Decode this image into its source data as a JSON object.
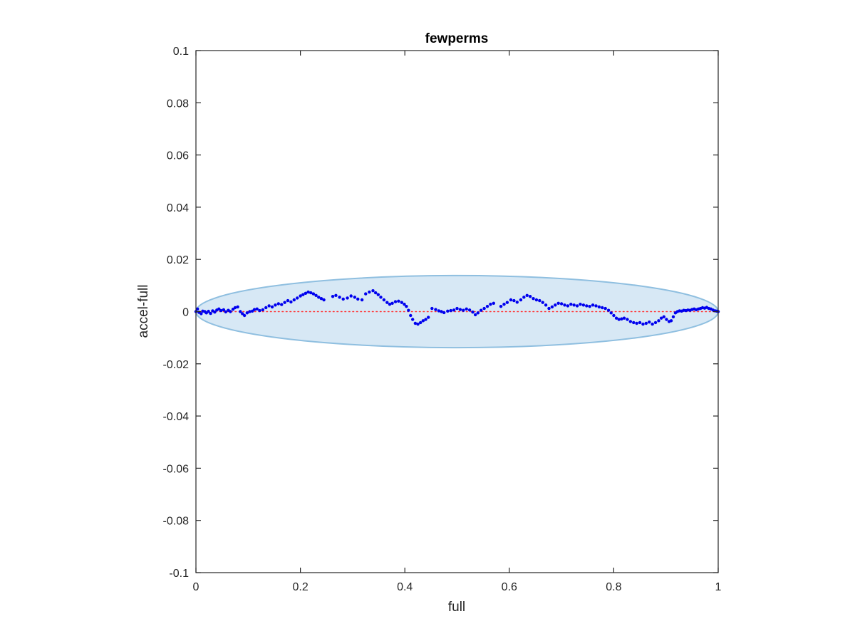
{
  "chart_data": {
    "type": "scatter",
    "title": "fewperms",
    "xlabel": "full",
    "ylabel": "accel-full",
    "xlim": [
      0,
      1
    ],
    "ylim": [
      -0.1,
      0.1
    ],
    "xticks": [
      0,
      0.2,
      0.4,
      0.6,
      0.8,
      1
    ],
    "xtick_labels": [
      "0",
      "0.2",
      "0.4",
      "0.6",
      "0.8",
      "1"
    ],
    "yticks": [
      0.1,
      0.08,
      0.06,
      0.04,
      0.02,
      0,
      -0.02,
      -0.04,
      -0.06,
      -0.08,
      -0.1
    ],
    "ytick_labels": [
      "0.1",
      "0.08",
      "0.06",
      "0.04",
      "0.02",
      "0",
      "-0.02",
      "-0.04",
      "-0.06",
      "-0.08",
      "-0.1"
    ],
    "grid": false,
    "reference_line": {
      "y": 0,
      "style": "dotted",
      "color": "#ff3333"
    },
    "ellipse": {
      "cx": 0.5,
      "cy": 0,
      "rx": 0.5,
      "ry": 0.0138,
      "fill": "#d7e8f5",
      "stroke": "#8fbfe0"
    },
    "point_color": "#0000ee",
    "series": [
      {
        "points": [
          [
            0.0,
            0.0
          ],
          [
            0.003,
            0.001
          ],
          [
            0.006,
            -0.0003
          ],
          [
            0.01,
            -0.0008
          ],
          [
            0.013,
            0.0002
          ],
          [
            0.017,
            0.0
          ],
          [
            0.02,
            -0.0005
          ],
          [
            0.024,
            0.0001
          ],
          [
            0.028,
            -0.0007
          ],
          [
            0.032,
            0.0003
          ],
          [
            0.036,
            -0.0002
          ],
          [
            0.04,
            0.0006
          ],
          [
            0.044,
            0.001
          ],
          [
            0.048,
            0.0004
          ],
          [
            0.053,
            0.0007
          ],
          [
            0.057,
            -0.0001
          ],
          [
            0.062,
            0.0005
          ],
          [
            0.066,
            0.0
          ],
          [
            0.071,
            0.0009
          ],
          [
            0.075,
            0.0015
          ],
          [
            0.08,
            0.0018
          ],
          [
            0.085,
            0.0
          ],
          [
            0.089,
            -0.0008
          ],
          [
            0.093,
            -0.0015
          ],
          [
            0.098,
            -0.0005
          ],
          [
            0.103,
            0.0
          ],
          [
            0.108,
            0.0002
          ],
          [
            0.112,
            0.0008
          ],
          [
            0.117,
            0.001
          ],
          [
            0.122,
            0.0004
          ],
          [
            0.128,
            0.0007
          ],
          [
            0.134,
            0.0015
          ],
          [
            0.14,
            0.0022
          ],
          [
            0.146,
            0.0018
          ],
          [
            0.152,
            0.0025
          ],
          [
            0.158,
            0.003
          ],
          [
            0.164,
            0.0027
          ],
          [
            0.17,
            0.0035
          ],
          [
            0.176,
            0.0042
          ],
          [
            0.182,
            0.0037
          ],
          [
            0.188,
            0.0045
          ],
          [
            0.194,
            0.0052
          ],
          [
            0.2,
            0.006
          ],
          [
            0.205,
            0.0065
          ],
          [
            0.21,
            0.007
          ],
          [
            0.215,
            0.0075
          ],
          [
            0.22,
            0.0072
          ],
          [
            0.225,
            0.0068
          ],
          [
            0.23,
            0.0062
          ],
          [
            0.235,
            0.0055
          ],
          [
            0.24,
            0.005
          ],
          [
            0.245,
            0.0045
          ],
          [
            0.262,
            0.0058
          ],
          [
            0.268,
            0.0062
          ],
          [
            0.275,
            0.0055
          ],
          [
            0.282,
            0.0048
          ],
          [
            0.29,
            0.0052
          ],
          [
            0.297,
            0.006
          ],
          [
            0.304,
            0.0055
          ],
          [
            0.31,
            0.0048
          ],
          [
            0.318,
            0.0045
          ],
          [
            0.325,
            0.0068
          ],
          [
            0.332,
            0.0075
          ],
          [
            0.339,
            0.008
          ],
          [
            0.344,
            0.0072
          ],
          [
            0.349,
            0.0065
          ],
          [
            0.354,
            0.0055
          ],
          [
            0.36,
            0.0045
          ],
          [
            0.366,
            0.0035
          ],
          [
            0.371,
            0.0028
          ],
          [
            0.376,
            0.0032
          ],
          [
            0.382,
            0.0038
          ],
          [
            0.388,
            0.004
          ],
          [
            0.394,
            0.0035
          ],
          [
            0.399,
            0.0028
          ],
          [
            0.403,
            0.002
          ],
          [
            0.407,
            0.0005
          ],
          [
            0.411,
            -0.0015
          ],
          [
            0.415,
            -0.003
          ],
          [
            0.42,
            -0.0045
          ],
          [
            0.425,
            -0.0048
          ],
          [
            0.43,
            -0.0042
          ],
          [
            0.435,
            -0.0035
          ],
          [
            0.44,
            -0.003
          ],
          [
            0.445,
            -0.0022
          ],
          [
            0.452,
            0.0012
          ],
          [
            0.459,
            0.0008
          ],
          [
            0.465,
            0.0003
          ],
          [
            0.47,
            0.0
          ],
          [
            0.475,
            -0.0004
          ],
          [
            0.482,
            0.0002
          ],
          [
            0.488,
            0.0004
          ],
          [
            0.494,
            0.0006
          ],
          [
            0.5,
            0.0012
          ],
          [
            0.506,
            0.0008
          ],
          [
            0.512,
            0.0005
          ],
          [
            0.518,
            0.001
          ],
          [
            0.524,
            0.0006
          ],
          [
            0.53,
            -0.0002
          ],
          [
            0.535,
            -0.0012
          ],
          [
            0.54,
            -0.0005
          ],
          [
            0.546,
            0.0005
          ],
          [
            0.552,
            0.0012
          ],
          [
            0.558,
            0.002
          ],
          [
            0.564,
            0.0028
          ],
          [
            0.57,
            0.0032
          ],
          [
            0.584,
            0.002
          ],
          [
            0.59,
            0.0028
          ],
          [
            0.596,
            0.0035
          ],
          [
            0.603,
            0.0045
          ],
          [
            0.609,
            0.0042
          ],
          [
            0.615,
            0.0036
          ],
          [
            0.622,
            0.0045
          ],
          [
            0.628,
            0.0055
          ],
          [
            0.634,
            0.0062
          ],
          [
            0.64,
            0.0058
          ],
          [
            0.646,
            0.005
          ],
          [
            0.652,
            0.0045
          ],
          [
            0.658,
            0.0042
          ],
          [
            0.664,
            0.0035
          ],
          [
            0.67,
            0.0025
          ],
          [
            0.676,
            0.0012
          ],
          [
            0.682,
            0.0018
          ],
          [
            0.688,
            0.0025
          ],
          [
            0.694,
            0.0032
          ],
          [
            0.7,
            0.003
          ],
          [
            0.706,
            0.0025
          ],
          [
            0.712,
            0.0022
          ],
          [
            0.718,
            0.0028
          ],
          [
            0.724,
            0.0025
          ],
          [
            0.73,
            0.0022
          ],
          [
            0.736,
            0.0028
          ],
          [
            0.742,
            0.0025
          ],
          [
            0.748,
            0.0022
          ],
          [
            0.754,
            0.002
          ],
          [
            0.76,
            0.0025
          ],
          [
            0.766,
            0.0022
          ],
          [
            0.772,
            0.0018
          ],
          [
            0.778,
            0.0015
          ],
          [
            0.784,
            0.0012
          ],
          [
            0.79,
            0.0005
          ],
          [
            0.795,
            -0.0005
          ],
          [
            0.8,
            -0.0015
          ],
          [
            0.805,
            -0.0025
          ],
          [
            0.81,
            -0.003
          ],
          [
            0.815,
            -0.0028
          ],
          [
            0.82,
            -0.0025
          ],
          [
            0.826,
            -0.003
          ],
          [
            0.832,
            -0.0038
          ],
          [
            0.838,
            -0.0042
          ],
          [
            0.844,
            -0.0045
          ],
          [
            0.85,
            -0.0042
          ],
          [
            0.856,
            -0.0048
          ],
          [
            0.862,
            -0.0045
          ],
          [
            0.868,
            -0.004
          ],
          [
            0.874,
            -0.0048
          ],
          [
            0.88,
            -0.0042
          ],
          [
            0.886,
            -0.0035
          ],
          [
            0.891,
            -0.0025
          ],
          [
            0.896,
            -0.002
          ],
          [
            0.901,
            -0.003
          ],
          [
            0.906,
            -0.0038
          ],
          [
            0.91,
            -0.0035
          ],
          [
            0.914,
            -0.002
          ],
          [
            0.918,
            -0.0005
          ],
          [
            0.922,
            0.0
          ],
          [
            0.926,
            0.0003
          ],
          [
            0.93,
            0.0002
          ],
          [
            0.934,
            0.0005
          ],
          [
            0.938,
            0.0004
          ],
          [
            0.942,
            0.0006
          ],
          [
            0.946,
            0.0005
          ],
          [
            0.95,
            0.0008
          ],
          [
            0.954,
            0.001
          ],
          [
            0.958,
            0.0007
          ],
          [
            0.962,
            0.001
          ],
          [
            0.966,
            0.0012
          ],
          [
            0.97,
            0.0015
          ],
          [
            0.974,
            0.0013
          ],
          [
            0.978,
            0.0016
          ],
          [
            0.982,
            0.0012
          ],
          [
            0.986,
            0.001
          ],
          [
            0.99,
            0.0006
          ],
          [
            0.994,
            0.0003
          ],
          [
            0.997,
            0.0002
          ],
          [
            1.0,
            0.0
          ]
        ]
      }
    ]
  }
}
